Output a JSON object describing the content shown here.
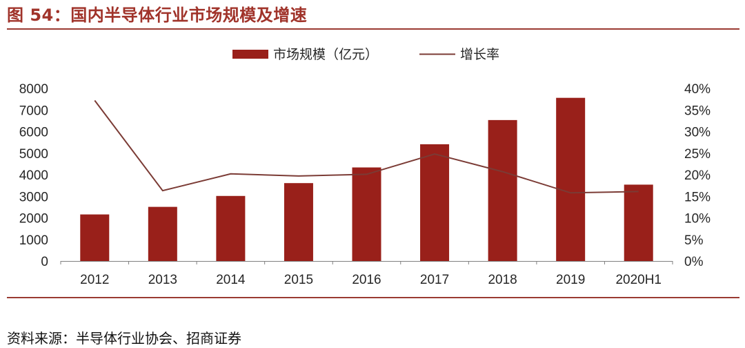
{
  "figure": {
    "title": "图 54：国内半导体行业市场规模及增速",
    "source": "资料来源：半导体行业协会、招商证券"
  },
  "colors": {
    "bar": "#99201a",
    "line": "#7b3b35",
    "title": "#a0332a",
    "axis": "#7f7f7f"
  },
  "chart_data": {
    "type": "bar",
    "title": "",
    "categories": [
      "2012",
      "2013",
      "2014",
      "2015",
      "2016",
      "2017",
      "2018",
      "2019",
      "2020H1"
    ],
    "series": [
      {
        "name": "市场规模（亿元）",
        "type": "bar",
        "axis": "left",
        "values": [
          2158,
          2509,
          3015,
          3610,
          4336,
          5411,
          6532,
          7562,
          3539
        ]
      },
      {
        "name": "增长率",
        "type": "line",
        "axis": "right",
        "values": [
          0.372,
          0.163,
          0.202,
          0.197,
          0.201,
          0.248,
          0.207,
          0.158,
          0.161
        ]
      }
    ],
    "y_left": {
      "min": 0,
      "max": 8000,
      "ticks": [
        "0",
        "1000",
        "2000",
        "3000",
        "4000",
        "5000",
        "6000",
        "7000",
        "8000"
      ]
    },
    "y_right": {
      "min": 0,
      "max": 0.4,
      "ticks": [
        "0%",
        "5%",
        "10%",
        "15%",
        "20%",
        "25%",
        "30%",
        "35%",
        "40%"
      ]
    },
    "legend_position": "top-center",
    "grid": false
  }
}
